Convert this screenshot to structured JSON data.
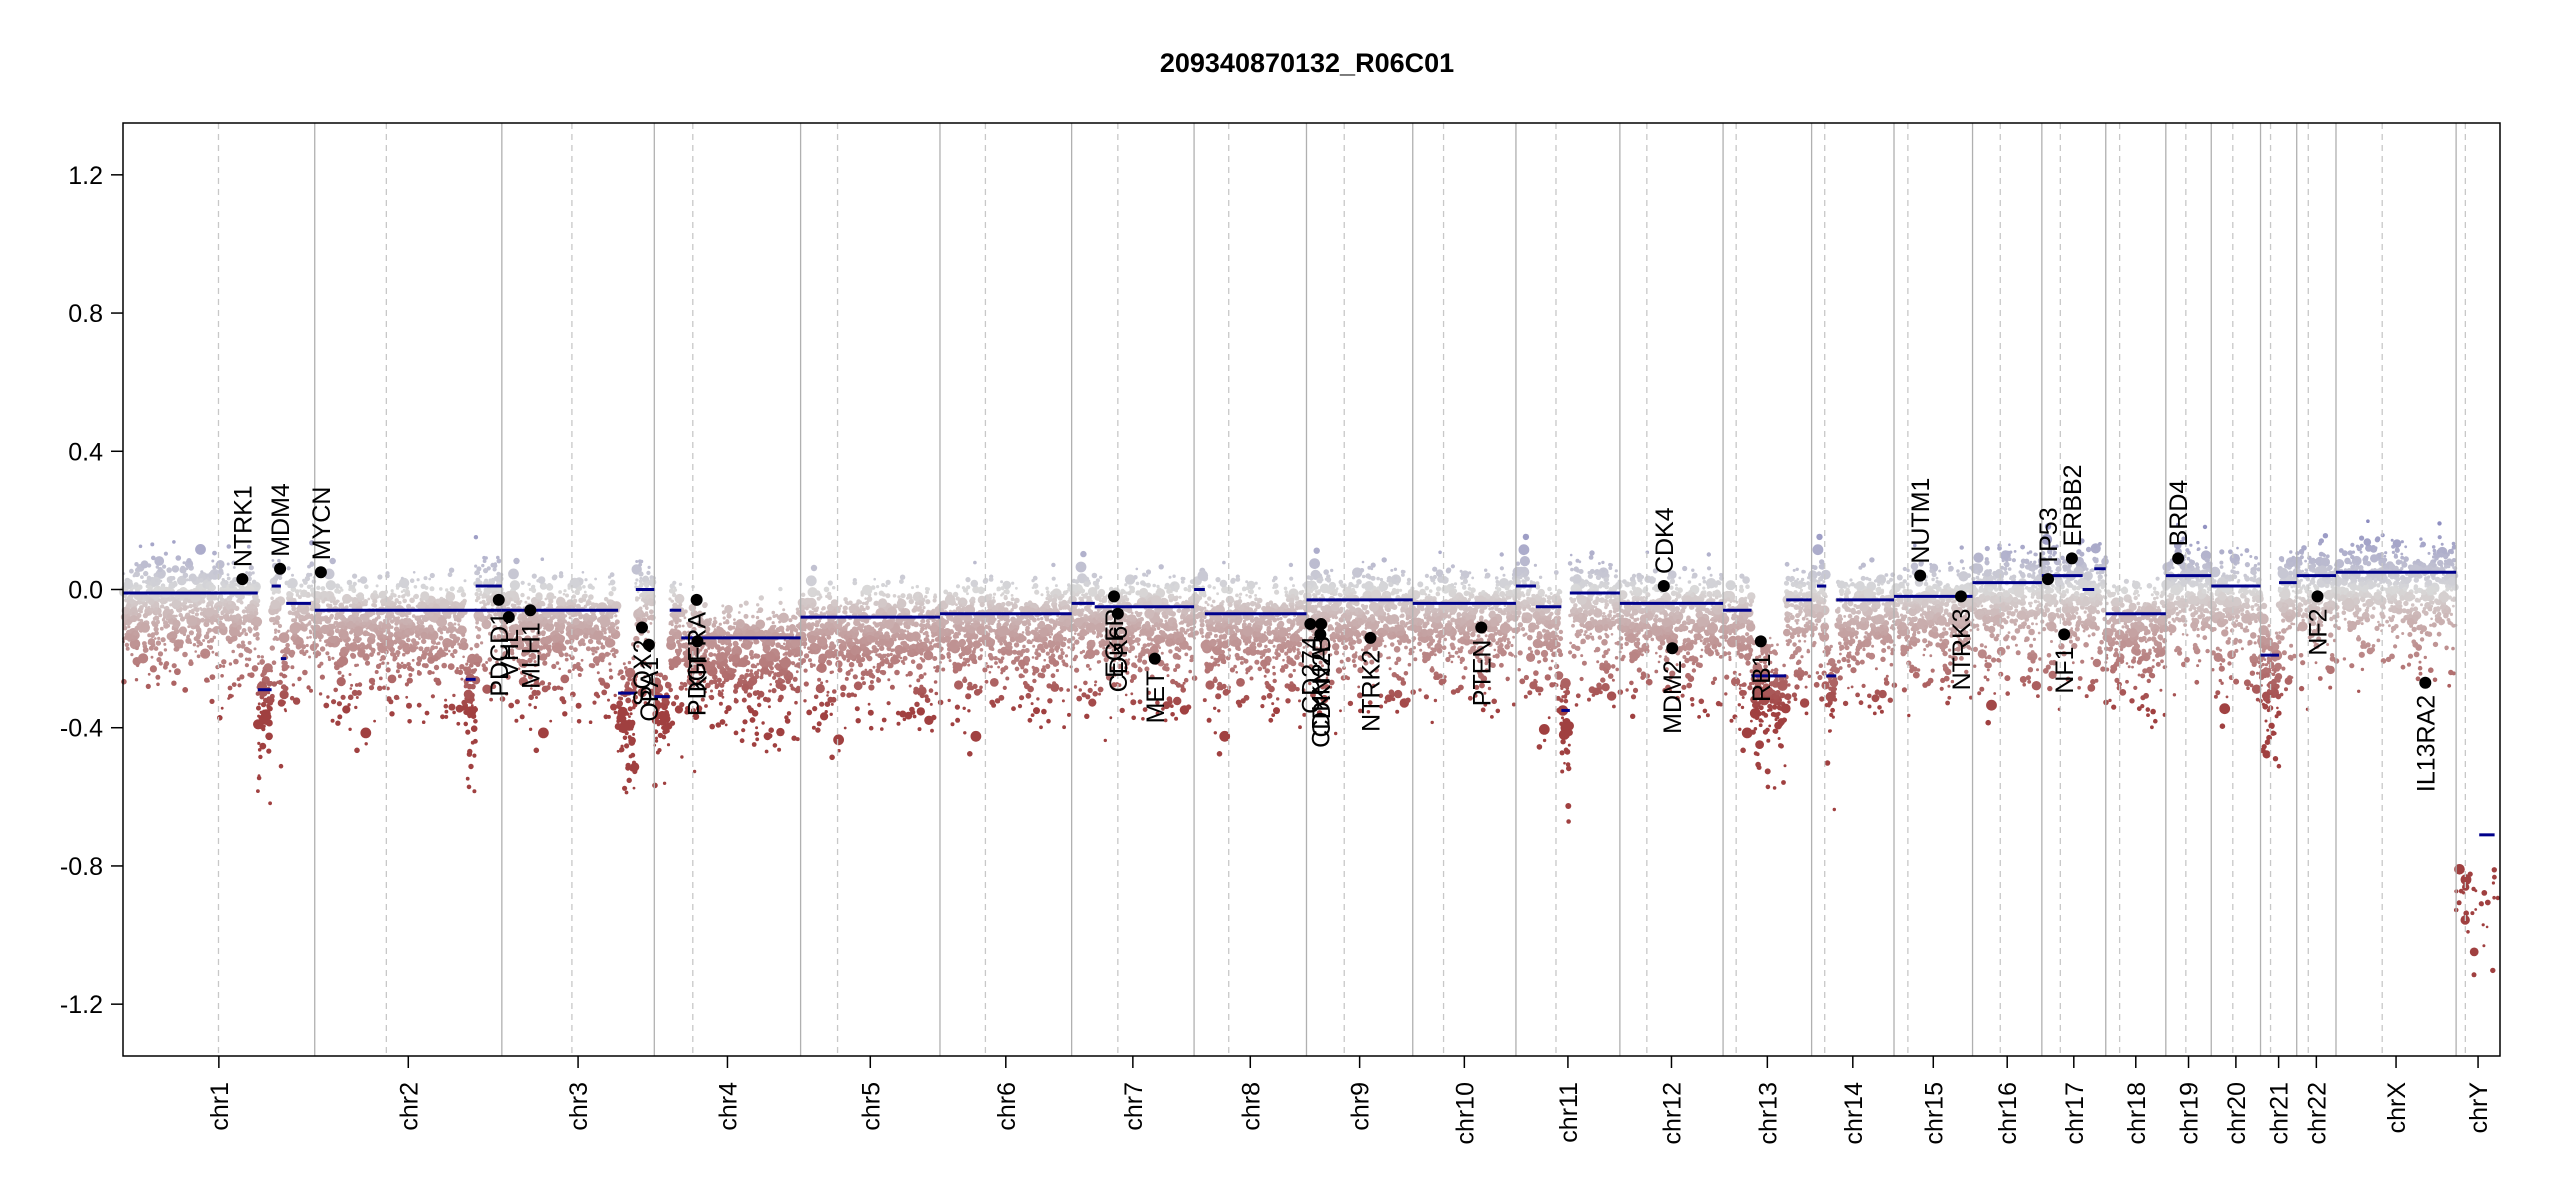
{
  "chart_data": {
    "type": "scatter",
    "title": "209340870132_R06C01",
    "xlabel": "",
    "ylabel": "",
    "ylim": [
      -1.35,
      1.35
    ],
    "y_ticks": [
      -1.2,
      -0.8,
      -0.4,
      0.0,
      0.4,
      0.8,
      1.2
    ],
    "y_tick_labels": [
      "-1.2",
      "-0.8",
      "-0.4",
      "0.0",
      "0.4",
      "0.8",
      "1.2"
    ],
    "grid": false,
    "legend": "none",
    "colors": {
      "gain": "#8b8bc0",
      "neutral": "#d9d9d9",
      "loss": "#a04040",
      "segment": "#00008b",
      "gene_point": "#000000",
      "chrom_border": "#b0b0b0",
      "centromere": "#c8c8c8"
    },
    "chromosomes": [
      {
        "name": "chr1",
        "start": 0.0,
        "end": 249.0,
        "centromere": 124.0
      },
      {
        "name": "chr2",
        "start": 249.0,
        "end": 492.0,
        "centromere": 342.0
      },
      {
        "name": "chr3",
        "start": 492.0,
        "end": 690.0,
        "centromere": 583.0
      },
      {
        "name": "chr4",
        "start": 690.0,
        "end": 880.0,
        "centromere": 740.0
      },
      {
        "name": "chr5",
        "start": 880.0,
        "end": 1061.0,
        "centromere": 928.0
      },
      {
        "name": "chr6",
        "start": 1061.0,
        "end": 1232.0,
        "centromere": 1120.0
      },
      {
        "name": "chr7",
        "start": 1232.0,
        "end": 1391.0,
        "centromere": 1292.0
      },
      {
        "name": "chr8",
        "start": 1391.0,
        "end": 1537.0,
        "centromere": 1436.0
      },
      {
        "name": "chr9",
        "start": 1537.0,
        "end": 1675.0,
        "centromere": 1586.0
      },
      {
        "name": "chr10",
        "start": 1675.0,
        "end": 1809.0,
        "centromere": 1715.0
      },
      {
        "name": "chr11",
        "start": 1809.0,
        "end": 1944.0,
        "centromere": 1861.0
      },
      {
        "name": "chr12",
        "start": 1944.0,
        "end": 2078.0,
        "centromere": 1979.0
      },
      {
        "name": "chr13",
        "start": 2078.0,
        "end": 2193.0,
        "centromere": 2095.0
      },
      {
        "name": "chr14",
        "start": 2193.0,
        "end": 2300.0,
        "centromere": 2210.0
      },
      {
        "name": "chr15",
        "start": 2300.0,
        "end": 2402.0,
        "centromere": 2318.0
      },
      {
        "name": "chr16",
        "start": 2402.0,
        "end": 2492.0,
        "centromere": 2438.0
      },
      {
        "name": "chr17",
        "start": 2492.0,
        "end": 2575.0,
        "centromere": 2516.0
      },
      {
        "name": "chr18",
        "start": 2575.0,
        "end": 2653.0,
        "centromere": 2593.0
      },
      {
        "name": "chr19",
        "start": 2653.0,
        "end": 2712.0,
        "centromere": 2679.0
      },
      {
        "name": "chr20",
        "start": 2712.0,
        "end": 2776.0,
        "centromere": 2740.0
      },
      {
        "name": "chr21",
        "start": 2776.0,
        "end": 2823.0,
        "centromere": 2789.0
      },
      {
        "name": "chr22",
        "start": 2823.0,
        "end": 2874.0,
        "centromere": 2838.0
      },
      {
        "name": "chrX",
        "start": 2874.0,
        "end": 3030.0,
        "centromere": 2934.0
      },
      {
        "name": "chrY",
        "start": 3030.0,
        "end": 3087.0,
        "centromere": 3042.0
      }
    ],
    "segments": [
      {
        "x0": 0,
        "x1": 175,
        "y": -0.01
      },
      {
        "x0": 175,
        "x1": 193,
        "y": -0.29
      },
      {
        "x0": 193,
        "x1": 205,
        "y": 0.01
      },
      {
        "x0": 205,
        "x1": 212,
        "y": -0.2
      },
      {
        "x0": 212,
        "x1": 244,
        "y": -0.04
      },
      {
        "x0": 249,
        "x1": 492,
        "y": -0.06
      },
      {
        "x0": 445,
        "x1": 458,
        "y": -0.26
      },
      {
        "x0": 458,
        "x1": 492,
        "y": 0.01
      },
      {
        "x0": 492,
        "x1": 643,
        "y": -0.06
      },
      {
        "x0": 643,
        "x1": 666,
        "y": -0.3
      },
      {
        "x0": 666,
        "x1": 690,
        "y": 0.0
      },
      {
        "x0": 690,
        "x1": 710,
        "y": -0.31
      },
      {
        "x0": 710,
        "x1": 725,
        "y": -0.06
      },
      {
        "x0": 725,
        "x1": 880,
        "y": -0.14
      },
      {
        "x0": 880,
        "x1": 1061,
        "y": -0.08
      },
      {
        "x0": 1061,
        "x1": 1232,
        "y": -0.07
      },
      {
        "x0": 1232,
        "x1": 1262,
        "y": -0.04
      },
      {
        "x0": 1262,
        "x1": 1391,
        "y": -0.05
      },
      {
        "x0": 1391,
        "x1": 1405,
        "y": 0.0
      },
      {
        "x0": 1405,
        "x1": 1537,
        "y": -0.07
      },
      {
        "x0": 1537,
        "x1": 1675,
        "y": -0.03
      },
      {
        "x0": 1675,
        "x1": 1809,
        "y": -0.04
      },
      {
        "x0": 1809,
        "x1": 1835,
        "y": 0.01
      },
      {
        "x0": 1835,
        "x1": 1868,
        "y": -0.05
      },
      {
        "x0": 1868,
        "x1": 1879,
        "y": -0.35
      },
      {
        "x0": 1879,
        "x1": 1944,
        "y": -0.01
      },
      {
        "x0": 1944,
        "x1": 2078,
        "y": -0.04
      },
      {
        "x0": 2078,
        "x1": 2115,
        "y": -0.06
      },
      {
        "x0": 2115,
        "x1": 2160,
        "y": -0.25
      },
      {
        "x0": 2160,
        "x1": 2193,
        "y": -0.03
      },
      {
        "x0": 2200,
        "x1": 2212,
        "y": 0.01
      },
      {
        "x0": 2212,
        "x1": 2225,
        "y": -0.25
      },
      {
        "x0": 2225,
        "x1": 2300,
        "y": -0.03
      },
      {
        "x0": 2300,
        "x1": 2402,
        "y": -0.02
      },
      {
        "x0": 2402,
        "x1": 2492,
        "y": 0.02
      },
      {
        "x0": 2492,
        "x1": 2545,
        "y": 0.04
      },
      {
        "x0": 2545,
        "x1": 2560,
        "y": 0.0
      },
      {
        "x0": 2560,
        "x1": 2575,
        "y": 0.06
      },
      {
        "x0": 2575,
        "x1": 2653,
        "y": -0.07
      },
      {
        "x0": 2653,
        "x1": 2712,
        "y": 0.04
      },
      {
        "x0": 2712,
        "x1": 2776,
        "y": 0.01
      },
      {
        "x0": 2776,
        "x1": 2800,
        "y": -0.19
      },
      {
        "x0": 2800,
        "x1": 2823,
        "y": 0.02
      },
      {
        "x0": 2823,
        "x1": 2874,
        "y": 0.04
      },
      {
        "x0": 2874,
        "x1": 3030,
        "y": 0.05
      },
      {
        "x0": 3060,
        "x1": 3080,
        "y": -0.71
      }
    ],
    "genes": [
      {
        "name": "NTRK1",
        "x": 155,
        "y": 0.03
      },
      {
        "name": "MDM4",
        "x": 204,
        "y": 0.06
      },
      {
        "name": "MYCN",
        "x": 257,
        "y": 0.05
      },
      {
        "name": "PDCD1",
        "x": 488,
        "y": -0.03
      },
      {
        "name": "VHL",
        "x": 501,
        "y": -0.08
      },
      {
        "name": "MLH1",
        "x": 529,
        "y": -0.06
      },
      {
        "name": "SOX2",
        "x": 674,
        "y": -0.11
      },
      {
        "name": "OPA1",
        "x": 683,
        "y": -0.16
      },
      {
        "name": "PDGFRA",
        "x": 745,
        "y": -0.03
      },
      {
        "name": "KIT",
        "x": 746,
        "y": -0.15
      },
      {
        "name": "EGFR",
        "x": 1287,
        "y": -0.02
      },
      {
        "name": "CDK6",
        "x": 1292,
        "y": -0.07
      },
      {
        "name": "MET",
        "x": 1340,
        "y": -0.2
      },
      {
        "name": "CD274",
        "x": 1542,
        "y": -0.1
      },
      {
        "name": "CDKN2A",
        "x": 1555,
        "y": -0.13
      },
      {
        "name": "CDKN2B",
        "x": 1556,
        "y": -0.1
      },
      {
        "name": "NTRK2",
        "x": 1620,
        "y": -0.14
      },
      {
        "name": "PTEN",
        "x": 1764,
        "y": -0.11
      },
      {
        "name": "CDK4",
        "x": 2001,
        "y": 0.01
      },
      {
        "name": "MDM2",
        "x": 2012,
        "y": -0.17
      },
      {
        "name": "RB1",
        "x": 2127,
        "y": -0.15
      },
      {
        "name": "NUTM1",
        "x": 2334,
        "y": 0.04
      },
      {
        "name": "NTRK3",
        "x": 2387,
        "y": -0.02
      },
      {
        "name": "TP53",
        "x": 2500,
        "y": 0.03
      },
      {
        "name": "NF1",
        "x": 2521,
        "y": -0.13
      },
      {
        "name": "ERBB2",
        "x": 2531,
        "y": 0.09
      },
      {
        "name": "BRD4",
        "x": 2669,
        "y": 0.09
      },
      {
        "name": "NF2",
        "x": 2850,
        "y": -0.02
      },
      {
        "name": "IL13RA2",
        "x": 2990,
        "y": -0.27
      }
    ]
  }
}
